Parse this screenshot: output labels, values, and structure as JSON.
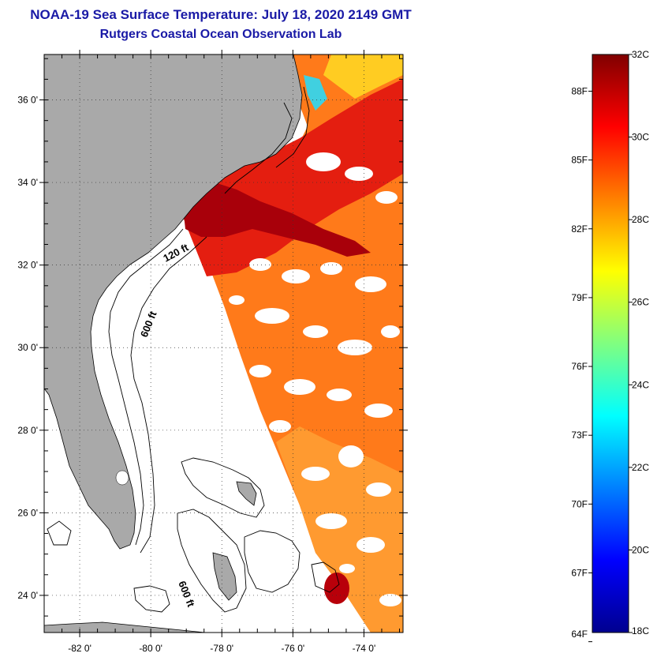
{
  "title": {
    "line1": "NOAA-19 Sea Surface Temperature:  July 18, 2020 2149 GMT",
    "line2": "Rutgers Coastal Ocean Observation Lab"
  },
  "map": {
    "lon_range": [
      -83,
      -72.9
    ],
    "lat_range": [
      23.1,
      37.1
    ],
    "lat_ticks": [
      {
        "value": 36,
        "label": "36 0'"
      },
      {
        "value": 34,
        "label": "34 0'"
      },
      {
        "value": 32,
        "label": "32 0'"
      },
      {
        "value": 30,
        "label": "30 0'"
      },
      {
        "value": 28,
        "label": "28 0'"
      },
      {
        "value": 26,
        "label": "26 0'"
      },
      {
        "value": 24,
        "label": "24 0'"
      }
    ],
    "lon_ticks": [
      {
        "value": -82,
        "label": "-82 0'"
      },
      {
        "value": -80,
        "label": "-80 0'"
      },
      {
        "value": -78,
        "label": "-78 0'"
      },
      {
        "value": -76,
        "label": "-76 0'"
      },
      {
        "value": -74,
        "label": "-74 0'"
      }
    ],
    "contour_labels": {
      "c120": "120 ft",
      "c600a": "600 ft",
      "c600b": "600 ft"
    },
    "land_color": "#a9a9a9",
    "no_data_color": "#ffffff"
  },
  "colorbar": {
    "celsius": [
      {
        "value": 32,
        "label": "32C"
      },
      {
        "value": 30,
        "label": "30C"
      },
      {
        "value": 28,
        "label": "28C"
      },
      {
        "value": 26,
        "label": "26C"
      },
      {
        "value": 24,
        "label": "24C"
      },
      {
        "value": 22,
        "label": "22C"
      },
      {
        "value": 20,
        "label": "20C"
      },
      {
        "value": 18,
        "label": "18C"
      }
    ],
    "fahrenheit": [
      {
        "value": 88,
        "label": "88F"
      },
      {
        "value": 85,
        "label": "85F"
      },
      {
        "value": 82,
        "label": "82F"
      },
      {
        "value": 79,
        "label": "79F"
      },
      {
        "value": 76,
        "label": "76F"
      },
      {
        "value": 73,
        "label": "73F"
      },
      {
        "value": 70,
        "label": "70F"
      },
      {
        "value": 67,
        "label": "67F"
      },
      {
        "value": 64,
        "label": "64F"
      }
    ],
    "range_c": [
      18,
      32
    ],
    "stops": [
      "#00008f",
      "#0000ff",
      "#0080ff",
      "#00ffff",
      "#80ff80",
      "#ffff00",
      "#ff8000",
      "#ff0000",
      "#800000"
    ]
  }
}
